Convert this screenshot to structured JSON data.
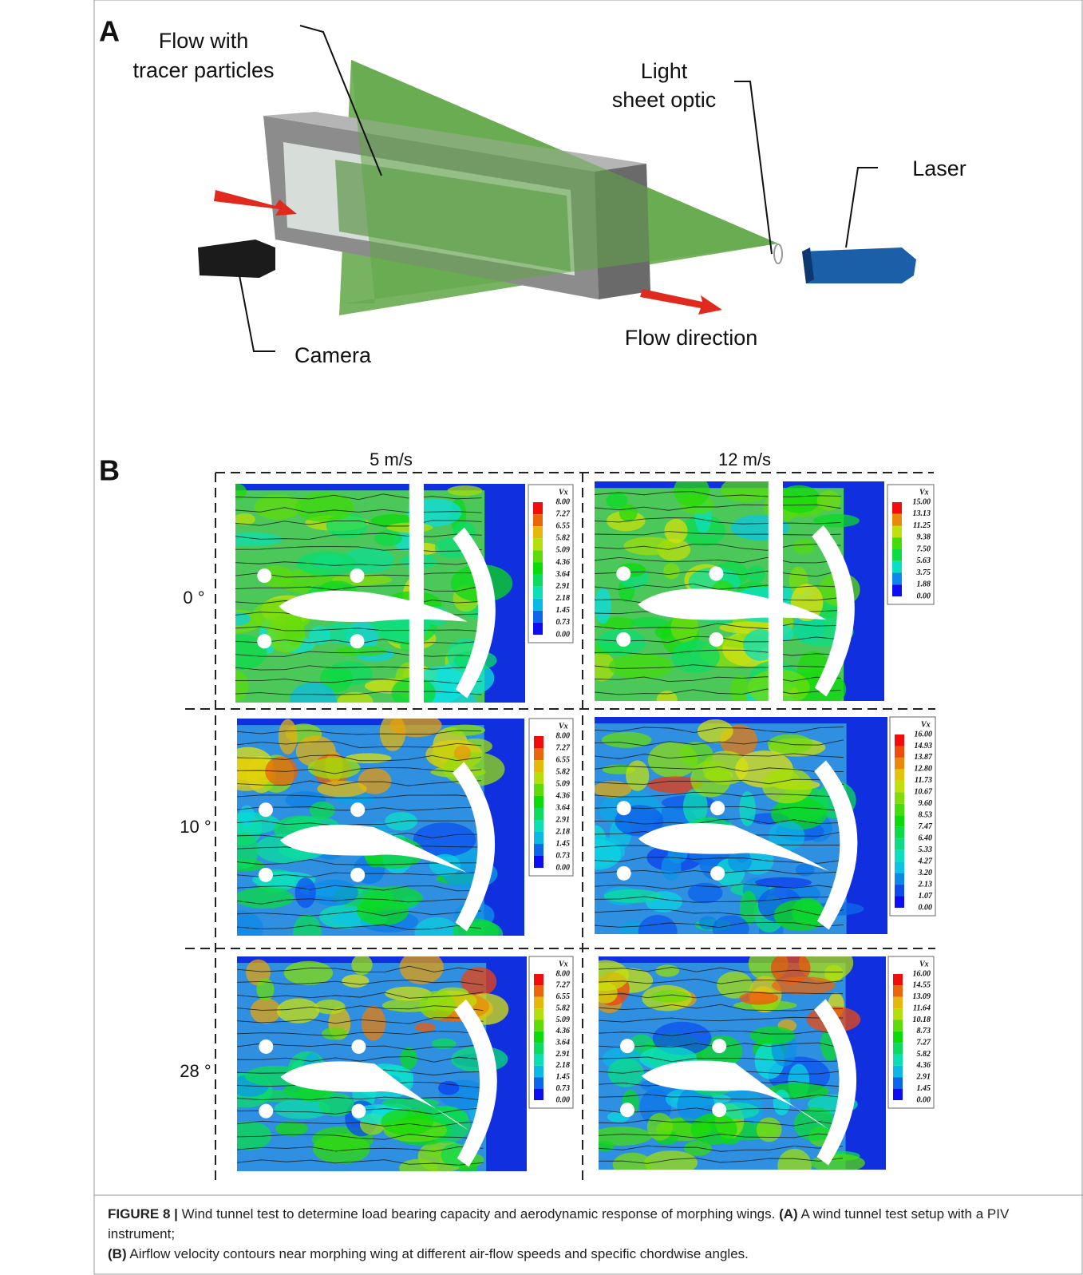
{
  "panel_a": {
    "label": "A",
    "flow_label": [
      "Flow with",
      "tracer particles"
    ],
    "optic_label": [
      "Light",
      "sheet optic"
    ],
    "laser_label": "Laser",
    "camera_label": "Camera",
    "flow_direction_label": "Flow direction"
  },
  "panel_b": {
    "label": "B",
    "columns": [
      "5 m/s",
      "12 m/s"
    ],
    "rows": [
      "0 °",
      "10 °",
      "28 °"
    ],
    "plots": [
      {
        "colorbar_title": "Vx",
        "ticks": [
          "8.00",
          "7.27",
          "6.55",
          "5.82",
          "5.09",
          "4.36",
          "3.64",
          "2.91",
          "2.18",
          "1.45",
          "0.73",
          "0.00"
        ]
      },
      {
        "colorbar_title": "Vx",
        "ticks": [
          "15.00",
          "13.13",
          "11.25",
          "9.38",
          "7.50",
          "5.63",
          "3.75",
          "1.88",
          "0.00"
        ]
      },
      {
        "colorbar_title": "Vx",
        "ticks": [
          "8.00",
          "7.27",
          "6.55",
          "5.82",
          "5.09",
          "4.36",
          "3.64",
          "2.91",
          "2.18",
          "1.45",
          "0.73",
          "0.00"
        ]
      },
      {
        "colorbar_title": "Vx",
        "ticks": [
          "16.00",
          "14.93",
          "13.87",
          "12.80",
          "11.73",
          "10.67",
          "9.60",
          "8.53",
          "7.47",
          "6.40",
          "5.33",
          "4.27",
          "3.20",
          "2.13",
          "1.07",
          "0.00"
        ]
      },
      {
        "colorbar_title": "Vx",
        "ticks": [
          "8.00",
          "7.27",
          "6.55",
          "5.82",
          "5.09",
          "4.36",
          "3.64",
          "2.91",
          "2.18",
          "1.45",
          "0.73",
          "0.00"
        ]
      },
      {
        "colorbar_title": "Vx",
        "ticks": [
          "16.00",
          "14.55",
          "13.09",
          "11.64",
          "10.18",
          "8.73",
          "7.27",
          "5.82",
          "4.36",
          "2.91",
          "1.45",
          "0.00"
        ]
      }
    ]
  },
  "caption": {
    "label": "FIGURE 8 |",
    "text": "Wind tunnel test to determine load bearing capacity and aerodynamic response of morphing wings.",
    "a_label": "(A)",
    "a_text": "A wind tunnel test setup with a PIV instrument;",
    "b_label": "(B)",
    "b_text": "Airflow velocity contours near morphing wing at different air-flow speeds and specific chordwise angles."
  }
}
